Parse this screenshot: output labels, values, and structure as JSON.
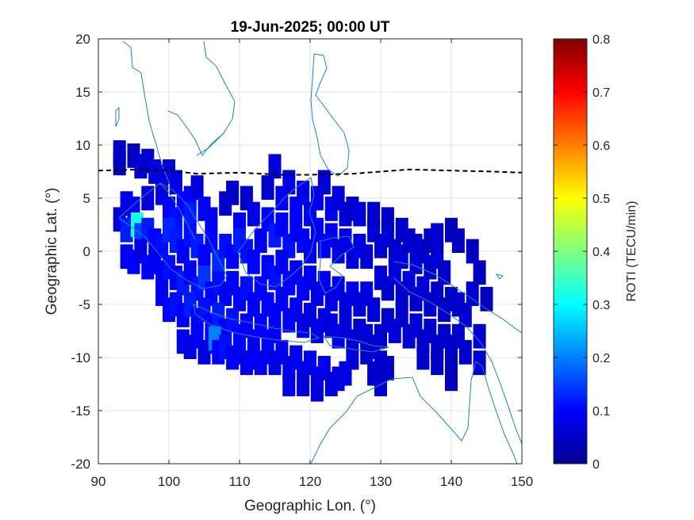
{
  "chart_data": {
    "type": "heatmap",
    "title": "19-Jun-2025; 00:00 UT",
    "xlabel": "Geographic Lon. (°)",
    "ylabel": "Geographic Lat. (°)",
    "xlim": [
      90,
      150
    ],
    "ylim": [
      -20,
      20
    ],
    "xticks": [
      90,
      100,
      110,
      120,
      130,
      140,
      150
    ],
    "yticks": [
      -20,
      -15,
      -10,
      -5,
      0,
      5,
      10,
      15,
      20
    ],
    "grid": true,
    "colorbar": {
      "label": "ROTI (TECU/min)",
      "colormap": "jet",
      "range": [
        0,
        0.8
      ],
      "ticks": [
        0,
        0.1,
        0.2,
        0.3,
        0.4,
        0.5,
        0.6,
        0.7,
        0.8
      ]
    },
    "roti_cells": [
      [
        93,
        9.3,
        0.06
      ],
      [
        93,
        8.3,
        0.05
      ],
      [
        95,
        9,
        0.05
      ],
      [
        96,
        8,
        0.07
      ],
      [
        97,
        8.5,
        0.06
      ],
      [
        98,
        7.5,
        0.08
      ],
      [
        99,
        7,
        0.08
      ],
      [
        100,
        7.5,
        0.07
      ],
      [
        101,
        6.5,
        0.08
      ],
      [
        103,
        5,
        0.1
      ],
      [
        104,
        6,
        0.07
      ],
      [
        94,
        4.5,
        0.08
      ],
      [
        95,
        4,
        0.09
      ],
      [
        97,
        5,
        0.07
      ],
      [
        99,
        5.5,
        0.07
      ],
      [
        100,
        4,
        0.1
      ],
      [
        101,
        3,
        0.11
      ],
      [
        102,
        4.5,
        0.1
      ],
      [
        103,
        3.5,
        0.12
      ],
      [
        105,
        4,
        0.1
      ],
      [
        106,
        3,
        0.09
      ],
      [
        108,
        4.5,
        0.06
      ],
      [
        109,
        5.5,
        0.06
      ],
      [
        111,
        5,
        0.06
      ],
      [
        110,
        2.5,
        0.09
      ],
      [
        112,
        3.5,
        0.08
      ],
      [
        93,
        3,
        0.07
      ],
      [
        94,
        2,
        0.12
      ],
      [
        95.5,
        2.5,
        0.32
      ],
      [
        96,
        1.5,
        0.15
      ],
      [
        97,
        2,
        0.12
      ],
      [
        98,
        1,
        0.1
      ],
      [
        99,
        0.5,
        0.11
      ],
      [
        100,
        2,
        0.13
      ],
      [
        101,
        1,
        0.12
      ],
      [
        102,
        0,
        0.1
      ],
      [
        103,
        1.5,
        0.11
      ],
      [
        104,
        0.5,
        0.12
      ],
      [
        105,
        -0.5,
        0.1
      ],
      [
        106,
        1,
        0.1
      ],
      [
        107,
        -1,
        0.13
      ],
      [
        108,
        0.5,
        0.11
      ],
      [
        109,
        -0.5,
        0.1
      ],
      [
        110,
        1,
        0.12
      ],
      [
        111,
        0,
        0.11
      ],
      [
        112,
        -1,
        0.1
      ],
      [
        113,
        1,
        0.09
      ],
      [
        94,
        -0.5,
        0.09
      ],
      [
        95,
        -1,
        0.1
      ],
      [
        96,
        0,
        0.08
      ],
      [
        97,
        -1.5,
        0.1
      ],
      [
        98,
        -1,
        0.09
      ],
      [
        99,
        -2,
        0.1
      ],
      [
        100,
        -1.5,
        0.11
      ],
      [
        101,
        -2.5,
        0.1
      ],
      [
        102,
        -3,
        0.12
      ],
      [
        103,
        -2,
        0.1
      ],
      [
        104,
        -3.5,
        0.11
      ],
      [
        105,
        -2.5,
        0.14
      ],
      [
        106,
        -4,
        0.1
      ],
      [
        107,
        -3,
        0.11
      ],
      [
        108,
        -4,
        0.09
      ],
      [
        109,
        -3,
        0.1
      ],
      [
        110,
        -4.5,
        0.1
      ],
      [
        111,
        -3.5,
        0.11
      ],
      [
        112,
        -5,
        0.09
      ],
      [
        113,
        -3.5,
        0.1
      ],
      [
        99,
        -4,
        0.09
      ],
      [
        100,
        -5.5,
        0.1
      ],
      [
        101,
        -5,
        0.11
      ],
      [
        102,
        -6,
        0.1
      ],
      [
        103,
        -5,
        0.12
      ],
      [
        104,
        -6.5,
        0.1
      ],
      [
        105,
        -5.5,
        0.11
      ],
      [
        106,
        -7,
        0.1
      ],
      [
        107,
        -6,
        0.12
      ],
      [
        108,
        -7.5,
        0.1
      ],
      [
        109,
        -6.5,
        0.11
      ],
      [
        110,
        -8,
        0.1
      ],
      [
        111,
        -7,
        0.1
      ],
      [
        112,
        -8.5,
        0.09
      ],
      [
        113,
        -7,
        0.1
      ],
      [
        114,
        -8.5,
        0.1
      ],
      [
        115,
        -7.5,
        0.09
      ],
      [
        102,
        -8.5,
        0.09
      ],
      [
        103,
        -9,
        0.08
      ],
      [
        104,
        -8,
        0.1
      ],
      [
        105,
        -9.5,
        0.08
      ],
      [
        106,
        -8.5,
        0.09
      ],
      [
        106.5,
        -8.2,
        0.2
      ],
      [
        107,
        -9.5,
        0.1
      ],
      [
        108,
        -9,
        0.11
      ],
      [
        109,
        -10,
        0.09
      ],
      [
        110,
        -9.5,
        0.1
      ],
      [
        111,
        -10.5,
        0.08
      ],
      [
        112,
        -10,
        0.1
      ],
      [
        113,
        -10.5,
        0.09
      ],
      [
        114,
        -9.5,
        0.1
      ],
      [
        115,
        -10.5,
        0.08
      ],
      [
        116,
        -9.5,
        0.09
      ],
      [
        117,
        -11,
        0.08
      ],
      [
        118,
        -10,
        0.09
      ],
      [
        119,
        -11.5,
        0.08
      ],
      [
        120,
        -10.5,
        0.09
      ],
      [
        121,
        -12,
        0.08
      ],
      [
        122,
        -11,
        0.09
      ],
      [
        123,
        -12.5,
        0.07
      ],
      [
        124,
        -12,
        0.08
      ],
      [
        125,
        -11.5,
        0.08
      ],
      [
        117,
        -12.5,
        0.08
      ],
      [
        119,
        -12.5,
        0.07
      ],
      [
        121,
        -13,
        0.07
      ],
      [
        114,
        6,
        0.06
      ],
      [
        115,
        8,
        0.07
      ],
      [
        116,
        5,
        0.09
      ],
      [
        117,
        6.5,
        0.08
      ],
      [
        118,
        4,
        0.1
      ],
      [
        119,
        5.5,
        0.08
      ],
      [
        120,
        3.5,
        0.09
      ],
      [
        121,
        5,
        0.08
      ],
      [
        122,
        6.5,
        0.07
      ],
      [
        123,
        4,
        0.09
      ],
      [
        124,
        5,
        0.07
      ],
      [
        125,
        3.5,
        0.07
      ],
      [
        126,
        4,
        0.06
      ],
      [
        127,
        3.5,
        0.07
      ],
      [
        114,
        3,
        0.1
      ],
      [
        115,
        1.5,
        0.12
      ],
      [
        116,
        2.5,
        0.1
      ],
      [
        117,
        0.5,
        0.11
      ],
      [
        118,
        2,
        0.1
      ],
      [
        119,
        1,
        0.1
      ],
      [
        120,
        0,
        0.09
      ],
      [
        121,
        2,
        0.09
      ],
      [
        122,
        0.5,
        0.1
      ],
      [
        123,
        1.5,
        0.09
      ],
      [
        124,
        0,
        0.08
      ],
      [
        125,
        1,
        0.08
      ],
      [
        126,
        -0.5,
        0.07
      ],
      [
        127,
        0.5,
        0.08
      ],
      [
        128,
        -0.5,
        0.07
      ],
      [
        114,
        -1.5,
        0.1
      ],
      [
        115,
        -2.5,
        0.11
      ],
      [
        116,
        -1,
        0.1
      ],
      [
        117,
        -3,
        0.1
      ],
      [
        118,
        -2,
        0.09
      ],
      [
        119,
        -3.5,
        0.1
      ],
      [
        120,
        -2.5,
        0.09
      ],
      [
        121,
        -4,
        0.08
      ],
      [
        122,
        -3,
        0.09
      ],
      [
        123,
        -4.5,
        0.08
      ],
      [
        124,
        -3.5,
        0.08
      ],
      [
        125,
        -5,
        0.07
      ],
      [
        126,
        -4,
        0.08
      ],
      [
        127,
        -5,
        0.07
      ],
      [
        128,
        -4,
        0.08
      ],
      [
        129,
        -5.5,
        0.07
      ],
      [
        114,
        -5,
        0.1
      ],
      [
        115,
        -6,
        0.09
      ],
      [
        116,
        -4.5,
        0.1
      ],
      [
        117,
        -6.5,
        0.09
      ],
      [
        118,
        -5.5,
        0.09
      ],
      [
        119,
        -7,
        0.08
      ],
      [
        120,
        -6,
        0.08
      ],
      [
        121,
        -7.5,
        0.08
      ],
      [
        122,
        -6.5,
        0.08
      ],
      [
        123,
        -7,
        0.07
      ],
      [
        124,
        -8,
        0.08
      ],
      [
        125,
        -7,
        0.07
      ],
      [
        126,
        -8.5,
        0.07
      ],
      [
        127,
        -7.5,
        0.06
      ],
      [
        128,
        -8,
        0.07
      ],
      [
        129,
        -9,
        0.07
      ],
      [
        130,
        -8,
        0.06
      ],
      [
        129,
        2,
        0.07
      ],
      [
        130,
        0.5,
        0.06
      ],
      [
        131,
        1.5,
        0.07
      ],
      [
        132,
        0,
        0.06
      ],
      [
        133,
        -0.5,
        0.07
      ],
      [
        134,
        1,
        0.06
      ],
      [
        135,
        -1,
        0.07
      ],
      [
        136,
        0,
        0.06
      ],
      [
        137,
        -1.5,
        0.06
      ],
      [
        138,
        -0.5,
        0.07
      ],
      [
        139,
        -2,
        0.06
      ],
      [
        130,
        -2.5,
        0.07
      ],
      [
        131,
        -3.5,
        0.06
      ],
      [
        132,
        -2,
        0.07
      ],
      [
        133,
        -4,
        0.06
      ],
      [
        134,
        -3,
        0.07
      ],
      [
        135,
        -4.5,
        0.06
      ],
      [
        136,
        -3.5,
        0.07
      ],
      [
        137,
        -5,
        0.06
      ],
      [
        138,
        -4,
        0.06
      ],
      [
        139,
        -5.5,
        0.06
      ],
      [
        140,
        -4.5,
        0.06
      ],
      [
        141,
        -5,
        0.06
      ],
      [
        142,
        -6,
        0.06
      ],
      [
        143,
        -4,
        0.06
      ],
      [
        131,
        -6.5,
        0.06
      ],
      [
        132,
        -7.5,
        0.07
      ],
      [
        133,
        -6,
        0.06
      ],
      [
        134,
        -8,
        0.06
      ],
      [
        135,
        -7,
        0.07
      ],
      [
        136,
        -8.5,
        0.06
      ],
      [
        137,
        -7.5,
        0.06
      ],
      [
        138,
        -9,
        0.06
      ],
      [
        139,
        -8,
        0.06
      ],
      [
        140,
        -9,
        0.06
      ],
      [
        141,
        -8,
        0.06
      ],
      [
        142,
        -9.5,
        0.06
      ],
      [
        144,
        -8,
        0.06
      ],
      [
        136,
        -10,
        0.06
      ],
      [
        138,
        -10.5,
        0.06
      ],
      [
        140,
        -11,
        0.05
      ],
      [
        144,
        -10.5,
        0.06
      ],
      [
        140,
        -12,
        0.05
      ],
      [
        126,
        -10,
        0.07
      ],
      [
        128,
        -9.5,
        0.06
      ],
      [
        130,
        -10.5,
        0.06
      ],
      [
        129,
        -11.5,
        0.06
      ],
      [
        130,
        -12.5,
        0.06
      ],
      [
        131,
        -11,
        0.06
      ],
      [
        129,
        3.5,
        0.06
      ],
      [
        131,
        3,
        0.06
      ],
      [
        133,
        2,
        0.06
      ],
      [
        135,
        0.5,
        0.06
      ],
      [
        137,
        1,
        0.05
      ],
      [
        138,
        1.5,
        0.06
      ],
      [
        140,
        2,
        0.05
      ],
      [
        141,
        1,
        0.05
      ],
      [
        143,
        0,
        0.05
      ],
      [
        144,
        -2,
        0.05
      ],
      [
        145,
        -4.5,
        0.05
      ]
    ]
  }
}
